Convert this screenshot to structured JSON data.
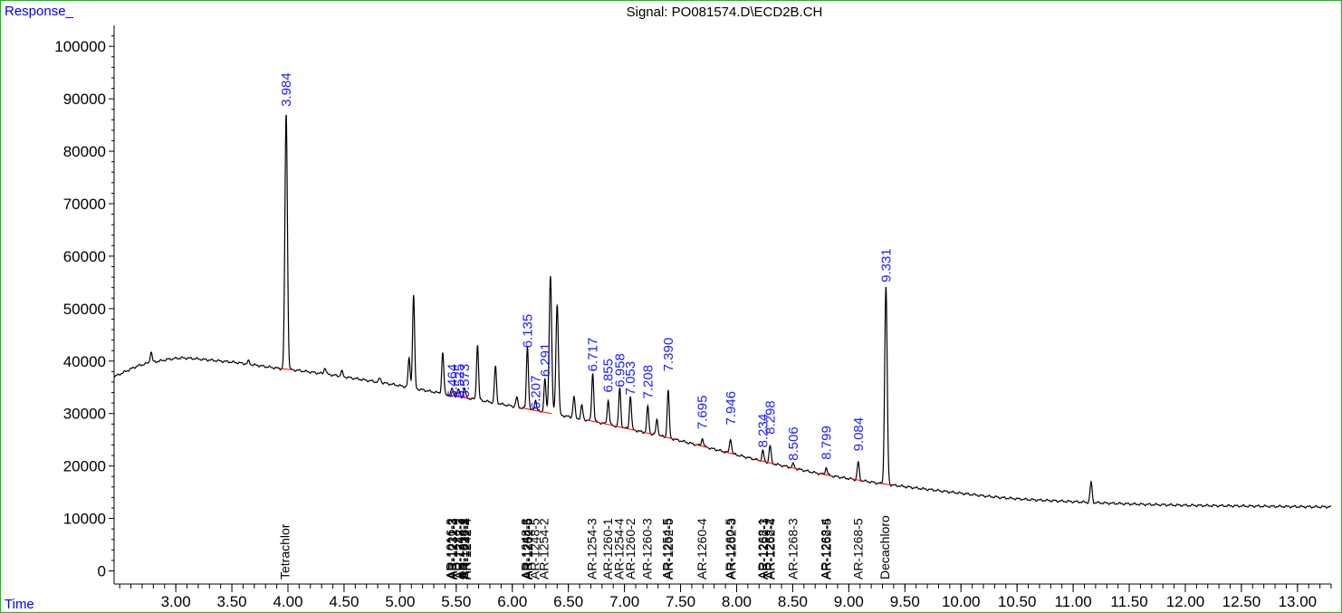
{
  "chart_data": {
    "type": "line",
    "title": "Signal: PO081574.D\\ECD2B.CH",
    "ylabel": "Response_",
    "xlabel": "Time",
    "xlim": [
      2.45,
      13.3
    ],
    "ylim": [
      -2500,
      104000
    ],
    "x_ticks": [
      "3.00",
      "3.50",
      "4.00",
      "4.50",
      "5.00",
      "5.50",
      "6.00",
      "6.50",
      "7.00",
      "7.50",
      "8.00",
      "8.50",
      "9.00",
      "9.50",
      "10.00",
      "10.50",
      "11.00",
      "11.50",
      "12.00",
      "12.50",
      "13.00"
    ],
    "y_ticks": [
      "0",
      "10000",
      "20000",
      "30000",
      "40000",
      "50000",
      "60000",
      "70000",
      "80000",
      "90000",
      "100000"
    ],
    "colors": {
      "trace": "#000000",
      "peak_label": "#1a1aff",
      "baseline": "#ff0000",
      "axis": "#000000",
      "frame": "#00cc00",
      "corner_label": "#0000ff"
    },
    "series": [
      {
        "x": [
          2.45,
          2.55,
          2.65,
          2.75,
          2.85,
          2.95,
          3.05,
          3.15,
          3.25,
          3.35,
          3.45,
          3.55,
          3.65,
          3.75,
          3.85,
          3.95,
          4.1,
          4.2,
          4.35,
          4.5,
          4.65,
          4.8,
          4.95,
          5.1,
          5.25,
          5.4,
          5.55,
          5.7,
          5.85,
          6.0,
          6.15,
          6.3,
          6.45,
          6.6,
          6.75,
          6.9,
          7.05,
          7.2,
          7.35,
          7.5,
          7.65,
          7.8,
          7.95,
          8.1,
          8.25,
          8.4,
          8.55,
          8.7,
          8.85,
          9.0,
          9.15,
          9.3,
          9.45,
          9.6,
          9.8,
          10.0,
          10.2,
          10.4,
          10.6,
          10.8,
          11.0,
          11.2,
          11.4,
          11.6,
          11.8,
          12.0,
          12.2,
          12.4,
          12.6,
          12.8,
          13.0,
          13.2,
          13.3
        ],
        "y": [
          37000,
          38000,
          39000,
          39600,
          40000,
          40400,
          40600,
          40500,
          40300,
          40100,
          39900,
          39700,
          39400,
          39100,
          38800,
          38500,
          38200,
          37900,
          37500,
          37000,
          36500,
          36000,
          35500,
          34900,
          34300,
          33700,
          33100,
          32600,
          32000,
          31400,
          30800,
          30200,
          29600,
          29000,
          28400,
          27700,
          27000,
          26300,
          25600,
          24800,
          24000,
          23200,
          22400,
          21600,
          20800,
          20100,
          19400,
          18700,
          18100,
          17600,
          17100,
          16600,
          16200,
          15800,
          15300,
          14800,
          14300,
          13900,
          13600,
          13400,
          13200,
          13000,
          12850,
          12700,
          12600,
          12500,
          12450,
          12400,
          12350,
          12300,
          12250,
          12200,
          12200
        ],
        "peaks": [
          {
            "t": 2.78,
            "h": 2000
          },
          {
            "t": 3.65,
            "h": 600
          },
          {
            "t": 3.984,
            "h": 48800
          },
          {
            "t": 4.33,
            "h": 1200
          },
          {
            "t": 4.48,
            "h": 1000
          },
          {
            "t": 4.82,
            "h": 800
          },
          {
            "t": 5.08,
            "h": 5500
          },
          {
            "t": 5.12,
            "h": 17800
          },
          {
            "t": 5.38,
            "h": 7800
          },
          {
            "t": 5.464,
            "h": 1300
          },
          {
            "t": 5.52,
            "h": 1400
          },
          {
            "t": 5.573,
            "h": 1900
          },
          {
            "t": 5.69,
            "h": 10500
          },
          {
            "t": 5.85,
            "h": 7000
          },
          {
            "t": 6.04,
            "h": 1800
          },
          {
            "t": 6.135,
            "h": 12000
          },
          {
            "t": 6.207,
            "h": 2000
          },
          {
            "t": 6.291,
            "h": 6200
          },
          {
            "t": 6.34,
            "h": 26200
          },
          {
            "t": 6.4,
            "h": 21000
          },
          {
            "t": 6.55,
            "h": 4000
          },
          {
            "t": 6.62,
            "h": 2600
          },
          {
            "t": 6.717,
            "h": 9200
          },
          {
            "t": 6.855,
            "h": 4600
          },
          {
            "t": 6.958,
            "h": 7400
          },
          {
            "t": 7.053,
            "h": 6400
          },
          {
            "t": 7.208,
            "h": 5000
          },
          {
            "t": 7.29,
            "h": 3000
          },
          {
            "t": 7.39,
            "h": 9000
          },
          {
            "t": 7.695,
            "h": 1500
          },
          {
            "t": 7.946,
            "h": 2800
          },
          {
            "t": 8.234,
            "h": 2000
          },
          {
            "t": 8.298,
            "h": 3300
          },
          {
            "t": 8.506,
            "h": 800
          },
          {
            "t": 8.799,
            "h": 1400
          },
          {
            "t": 9.084,
            "h": 3400
          },
          {
            "t": 9.331,
            "h": 37700
          },
          {
            "t": 11.16,
            "h": 3900
          }
        ]
      }
    ],
    "peak_labels": [
      "3.984",
      "5.464",
      "5.525",
      "5.573",
      "6.135",
      "6.207",
      "6.291",
      "6.717",
      "6.855",
      "6.958",
      "7.053",
      "7.208",
      "7.390",
      "7.695",
      "7.946",
      "8.234",
      "8.298",
      "8.506",
      "8.799",
      "9.084",
      "9.331"
    ],
    "peak_label_y": [
      88500,
      33000,
      33000,
      33000,
      42500,
      30800,
      37000,
      38000,
      34000,
      35000,
      33500,
      32800,
      38000,
      27000,
      27800,
      23500,
      26000,
      21000,
      21200,
      22800,
      55000
    ],
    "compound_labels": [
      {
        "x": 3.97,
        "text": "Tetrachlor"
      },
      {
        "x": 5.45,
        "text": "AR-1016-2"
      },
      {
        "x": 5.46,
        "text": "AR-1221-3"
      },
      {
        "x": 5.47,
        "text": "AR-1232-3"
      },
      {
        "x": 5.52,
        "text": "AR-1242-3"
      },
      {
        "x": 5.53,
        "text": "AR-1248-2"
      },
      {
        "x": 5.56,
        "text": "AR-1254-1"
      },
      {
        "x": 5.57,
        "text": "AR-1016-3"
      },
      {
        "x": 5.58,
        "text": "AR-1232-4"
      },
      {
        "x": 5.59,
        "text": "AR-1242-4"
      },
      {
        "x": 6.12,
        "text": "AR-1248-3"
      },
      {
        "x": 6.13,
        "text": "AR-1254-5"
      },
      {
        "x": 6.14,
        "text": "AR-1262-5"
      },
      {
        "x": 6.2,
        "text": "AR-1248-5"
      },
      {
        "x": 6.28,
        "text": "AR-1254-2"
      },
      {
        "x": 6.71,
        "text": "AR-1254-3"
      },
      {
        "x": 6.85,
        "text": "AR-1260-1"
      },
      {
        "x": 6.95,
        "text": "AR-1254-4"
      },
      {
        "x": 7.05,
        "text": "AR-1260-2"
      },
      {
        "x": 7.2,
        "text": "AR-1260-3"
      },
      {
        "x": 7.38,
        "text": "AR-1254-5"
      },
      {
        "x": 7.39,
        "text": "AR-1262-5"
      },
      {
        "x": 7.69,
        "text": "AR-1260-4"
      },
      {
        "x": 7.94,
        "text": "AR-1260-5"
      },
      {
        "x": 7.95,
        "text": "AR-1262-3"
      },
      {
        "x": 8.23,
        "text": "AR-1268-1"
      },
      {
        "x": 8.24,
        "text": "AR-1262-3"
      },
      {
        "x": 8.29,
        "text": "AR-1268-2"
      },
      {
        "x": 8.3,
        "text": "AR-1262-4"
      },
      {
        "x": 8.5,
        "text": "AR-1268-3"
      },
      {
        "x": 8.79,
        "text": "AR-1268-4"
      },
      {
        "x": 8.8,
        "text": "AR-1262-5"
      },
      {
        "x": 9.08,
        "text": "AR-1268-5"
      },
      {
        "x": 9.32,
        "text": "Decachloro"
      }
    ]
  }
}
